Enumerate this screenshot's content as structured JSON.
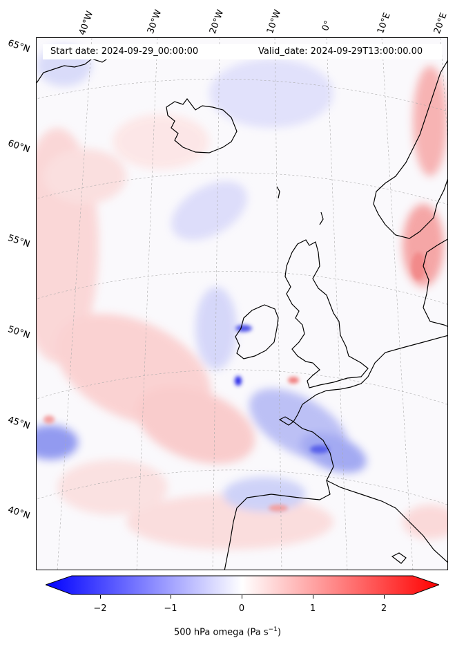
{
  "header": {
    "start_label": "Start date: 2024-09-29_00:00:00",
    "valid_label": "Valid_date: 2024-09-29T13:00:00.00"
  },
  "longitude_labels": [
    "40°W",
    "30°W",
    "20°W",
    "10°W",
    "0°",
    "10°E",
    "20°E"
  ],
  "latitude_labels": [
    "65°N",
    "60°N",
    "55°N",
    "50°N",
    "45°N",
    "40°N"
  ],
  "colorbar": {
    "ticks": [
      "−2",
      "−1",
      "0",
      "1",
      "2"
    ],
    "tick_values": [
      -2,
      -1,
      0,
      1,
      2
    ],
    "range": [
      -2.6,
      2.6
    ],
    "label_prefix": "500 hPa omega (Pa s",
    "label_exponent": "−1",
    "label_suffix": ")",
    "colormap": "bwr",
    "color_low": "#0000ff",
    "color_mid": "#ffffff",
    "color_high": "#ff0000",
    "extend": "both"
  },
  "map": {
    "projection": "conic",
    "field": "500 hPa omega",
    "gridlines": "dashed grey",
    "coastline_color": "#000000"
  }
}
